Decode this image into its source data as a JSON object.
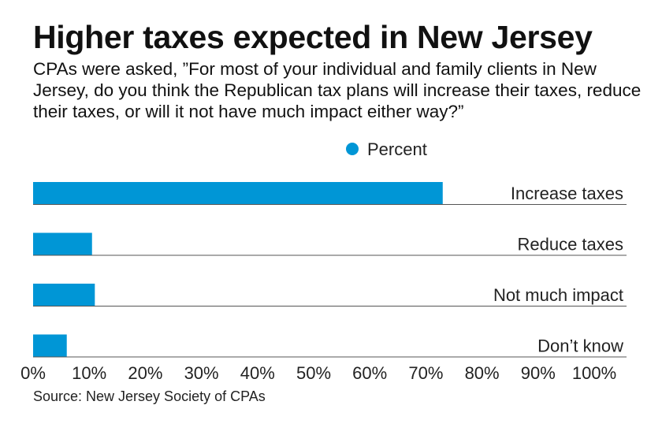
{
  "header": {
    "title": "Higher taxes expected in New Jersey",
    "subtitle": "CPAs were asked, ”For most of your individual and family clients in New Jersey, do you think the Republican tax plans will increase their taxes, reduce their taxes, or will it not have much impact either way?”"
  },
  "source": "Source: New Jersey Society of CPAs",
  "colors": {
    "bar": "#0096d6",
    "baseline": "#555555"
  },
  "chart_data": {
    "type": "bar",
    "orientation": "horizontal",
    "title": "Higher taxes expected in New Jersey",
    "legend": {
      "entries": [
        "Percent"
      ],
      "placement": "top-right"
    },
    "categories": [
      "Increase taxes",
      "Reduce taxes",
      "Not much impact",
      "Don’t know"
    ],
    "series": [
      {
        "name": "Percent",
        "values": [
          73,
          10.5,
          11,
          6
        ]
      }
    ],
    "xlim": [
      0,
      100
    ],
    "xticks": [
      0,
      10,
      20,
      30,
      40,
      50,
      60,
      70,
      80,
      90,
      100
    ],
    "xtick_labels": [
      "0%",
      "10%",
      "20%",
      "30%",
      "40%",
      "50%",
      "60%",
      "70%",
      "80%",
      "90%",
      "100%"
    ],
    "grid": false
  }
}
